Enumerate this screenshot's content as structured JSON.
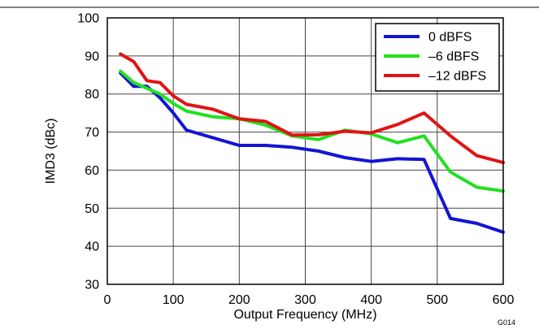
{
  "figure_id": "G014",
  "chart_data": {
    "type": "line",
    "title": "",
    "xlabel": "Output Frequency (MHz)",
    "ylabel": "IMD3 (dBc)",
    "xlim": [
      0,
      600
    ],
    "ylim": [
      30,
      100
    ],
    "xticks": [
      0,
      100,
      200,
      300,
      400,
      500,
      600
    ],
    "yticks": [
      30,
      40,
      50,
      60,
      70,
      80,
      90,
      100
    ],
    "grid": true,
    "legend_position": "top-right",
    "series": [
      {
        "name": "0 dBFS",
        "color": "#1414d4",
        "x": [
          20,
          40,
          60,
          80,
          100,
          120,
          160,
          200,
          240,
          280,
          320,
          360,
          400,
          440,
          480,
          520,
          560,
          600
        ],
        "y": [
          85.5,
          82,
          82,
          79,
          75,
          70.5,
          68.5,
          66.5,
          66.5,
          66,
          65,
          63.3,
          62.3,
          63,
          62.8,
          47.3,
          46,
          43.7
        ]
      },
      {
        "name": "–6 dBFS",
        "color": "#22e022",
        "x": [
          20,
          40,
          60,
          80,
          100,
          120,
          160,
          200,
          240,
          280,
          320,
          360,
          400,
          440,
          480,
          520,
          560,
          600
        ],
        "y": [
          86,
          83,
          81.5,
          80,
          77.5,
          75.5,
          74,
          73.5,
          71.8,
          69,
          68,
          70.5,
          69.5,
          67.2,
          69,
          59.5,
          55.5,
          54.5
        ]
      },
      {
        "name": "–12 dBFS",
        "color": "#e01414",
        "x": [
          20,
          40,
          60,
          80,
          100,
          120,
          160,
          200,
          240,
          280,
          320,
          360,
          400,
          440,
          480,
          520,
          560,
          600
        ],
        "y": [
          90.5,
          88.5,
          83.5,
          83,
          79.5,
          77.3,
          76,
          73.5,
          72.8,
          69.2,
          69.3,
          70.2,
          69.8,
          72,
          75,
          69,
          63.8,
          62
        ]
      }
    ]
  }
}
